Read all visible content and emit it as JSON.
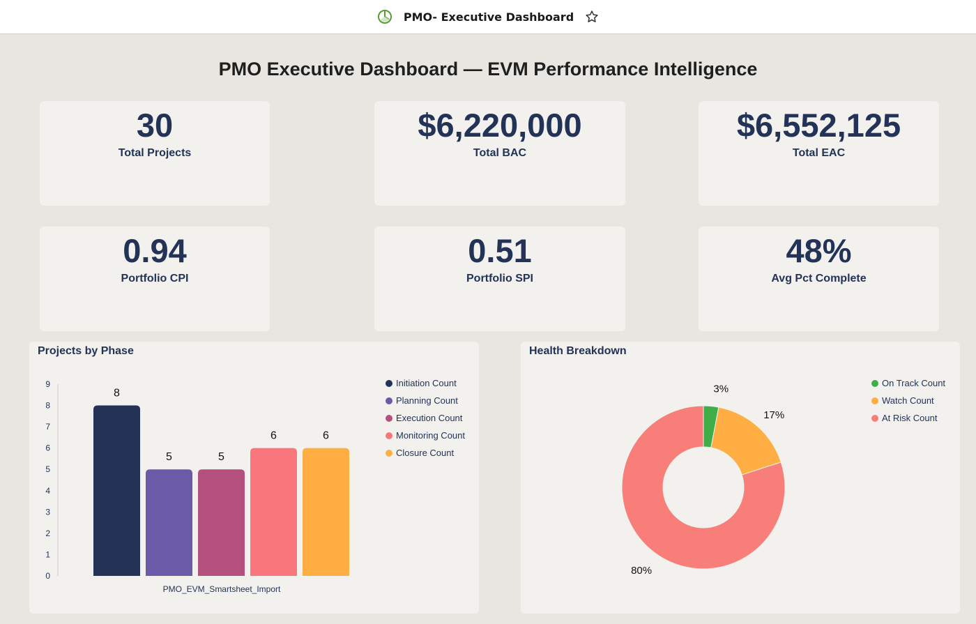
{
  "topbar": {
    "title": "PMO- Executive Dashboard",
    "icon": "pie-chart-icon",
    "star_icon": "star-icon"
  },
  "heading": "PMO Executive Dashboard — EVM Performance Intelligence",
  "kpis": [
    {
      "value": "30",
      "label": "Total Projects"
    },
    {
      "value": "$6,220,000",
      "label": "Total BAC"
    },
    {
      "value": "$6,552,125",
      "label": "Total EAC"
    },
    {
      "value": "0.94",
      "label": "Portfolio CPI"
    },
    {
      "value": "0.51",
      "label": "Portfolio SPI"
    },
    {
      "value": "48%",
      "label": "Avg Pct Complete"
    }
  ],
  "chart_data": [
    {
      "type": "bar",
      "title": "Projects by Phase",
      "categories": [
        "PMO_EVM_Smartsheet_Import"
      ],
      "xlabel": "PMO_EVM_Smartsheet_Import",
      "ylim": [
        0,
        9
      ],
      "yticks": [
        "0",
        "1",
        "2",
        "3",
        "4",
        "5",
        "6",
        "7",
        "8",
        "9"
      ],
      "legend": "right",
      "series": [
        {
          "name": "Initiation Count",
          "values": [
            8
          ],
          "color": "#223357"
        },
        {
          "name": "Planning Count",
          "values": [
            5
          ],
          "color": "#6a5aa8"
        },
        {
          "name": "Execution Count",
          "values": [
            5
          ],
          "color": "#b3507e"
        },
        {
          "name": "Monitoring Count",
          "values": [
            6
          ],
          "color": "#f8767c"
        },
        {
          "name": "Closure Count",
          "values": [
            6
          ],
          "color": "#feae42"
        }
      ]
    },
    {
      "type": "pie",
      "title": "Health Breakdown",
      "legend": "right",
      "donut": true,
      "slices": [
        {
          "name": "On Track Count",
          "value": 3,
          "label": "3%",
          "color": "#3fae49"
        },
        {
          "name": "Watch Count",
          "value": 17,
          "label": "17%",
          "color": "#feae42"
        },
        {
          "name": "At Risk Count",
          "value": 80,
          "label": "80%",
          "color": "#f87e7a"
        }
      ]
    }
  ]
}
